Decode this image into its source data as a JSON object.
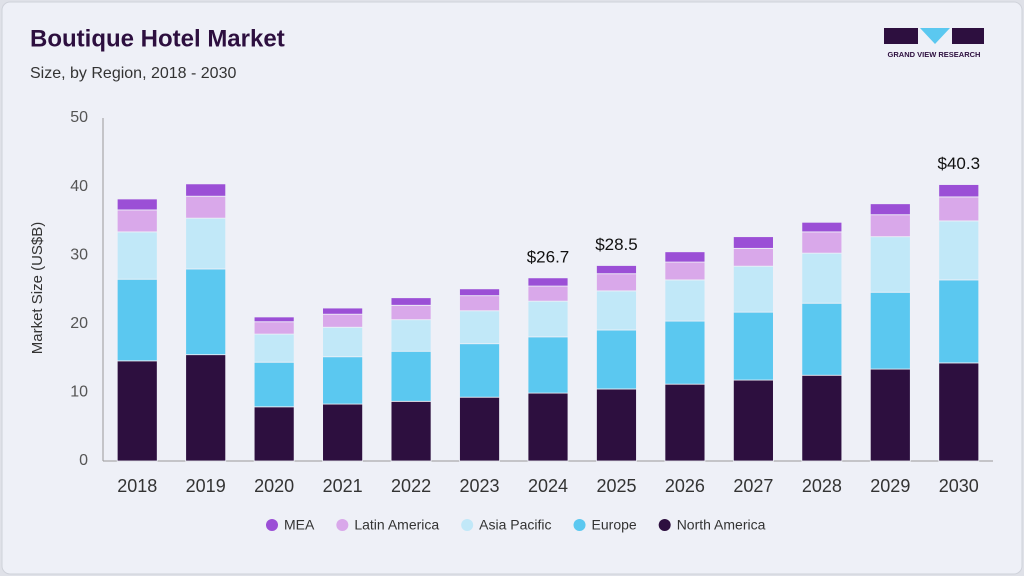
{
  "chart_data": {
    "type": "stacked-bar",
    "title": "Boutique Hotel Market",
    "subtitle": "Size, by Region, 2018 - 2030",
    "logo": "GRAND VIEW RESEARCH",
    "y_label": "Market Size (US$B)",
    "categories": [
      "2018",
      "2019",
      "2020",
      "2021",
      "2022",
      "2023",
      "2024",
      "2025",
      "2026",
      "2027",
      "2028",
      "2029",
      "2030"
    ],
    "series": [
      {
        "name": "North America",
        "color": "#2d0f3f",
        "values": [
          14.6,
          15.5,
          7.9,
          8.3,
          8.7,
          9.3,
          9.9,
          10.5,
          11.2,
          11.8,
          12.5,
          13.4,
          14.3
        ]
      },
      {
        "name": "Europe",
        "color": "#5bc8f0",
        "values": [
          11.9,
          12.5,
          6.5,
          6.9,
          7.3,
          7.8,
          8.2,
          8.6,
          9.2,
          9.9,
          10.5,
          11.2,
          12.1
        ]
      },
      {
        "name": "Asia Pacific",
        "color": "#c1e8f8",
        "values": [
          6.9,
          7.4,
          4.1,
          4.3,
          4.6,
          4.8,
          5.2,
          5.7,
          6.0,
          6.7,
          7.3,
          8.1,
          8.6
        ]
      },
      {
        "name": "Latin America",
        "color": "#d9a8ea",
        "values": [
          3.2,
          3.2,
          1.8,
          1.9,
          2.1,
          2.2,
          2.2,
          2.5,
          2.6,
          2.6,
          3.1,
          3.2,
          3.5
        ]
      },
      {
        "name": "MEA",
        "color": "#9b4fd6",
        "values": [
          1.6,
          1.8,
          0.7,
          0.9,
          1.1,
          1.0,
          1.2,
          1.2,
          1.5,
          1.7,
          1.4,
          1.6,
          1.8
        ]
      }
    ],
    "annotations": [
      {
        "category": "2024",
        "value": 26.7,
        "label": "$26.7"
      },
      {
        "category": "2025",
        "value": 28.5,
        "label": "$28.5"
      },
      {
        "category": "2030",
        "value": 40.3,
        "label": "$40.3"
      }
    ],
    "ylim": [
      0,
      50
    ],
    "yticks": [
      0,
      10,
      20,
      30,
      40,
      50
    ]
  }
}
